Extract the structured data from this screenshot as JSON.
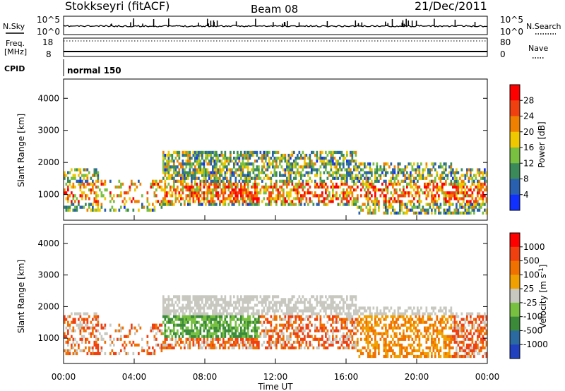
{
  "header": {
    "station": "Stokkseyri (fitACF)",
    "beam": "Beam 08",
    "date": "21/Dec/2011"
  },
  "noise_panel": {
    "left_label": "N.Sky",
    "left_ticks": [
      "10^5",
      "10^0"
    ],
    "right_ticks": [
      "10^5",
      "10^0"
    ],
    "right_label": "N.Search"
  },
  "freq_panel": {
    "left_label_1": "Freq.",
    "left_label_2": "[MHz]",
    "left_ticks": [
      "18",
      "8"
    ],
    "right_ticks": [
      "80",
      "0"
    ],
    "right_label": "Nave"
  },
  "cpid_panel": {
    "label": "CPID",
    "mode": "normal 150"
  },
  "colors": {
    "power_scale": [
      "#1030ff",
      "#2a60b0",
      "#3a8a5a",
      "#7ac040",
      "#f0c800",
      "#f08000",
      "#f04010",
      "#ff0000"
    ],
    "velocity_scale": [
      "#2040c0",
      "#2a6aa0",
      "#3a8a3a",
      "#78c040",
      "#c8c8c0",
      "#f0a000",
      "#f07000",
      "#f04010",
      "#ff0000"
    ]
  },
  "chart_data": [
    {
      "type": "heatmap",
      "quantity": "Power",
      "unit": "dB",
      "colorbar_label": "Power [dB]",
      "colorbar_ticks": [
        "28",
        "24",
        "20",
        "16",
        "12",
        "8",
        "4"
      ],
      "ylabel": "Slant Range [km]",
      "yticks": [
        "4000",
        "3000",
        "2000",
        "1000"
      ],
      "ylim": [
        200,
        4600
      ]
    },
    {
      "type": "heatmap",
      "quantity": "Velocity",
      "unit": "m s^-1",
      "colorbar_label": "Velocity [m s",
      "colorbar_label_sup": "-1",
      "colorbar_label_end": "]",
      "colorbar_ticks": [
        "1000",
        "500",
        "100",
        "25",
        "-25",
        "-100",
        "-500",
        "-1000"
      ],
      "ylabel": "Slant Range [km]",
      "yticks": [
        "4000",
        "3000",
        "2000",
        "1000"
      ],
      "ylim": [
        200,
        4600
      ],
      "xticks": [
        "00:00",
        "04:00",
        "08:00",
        "12:00",
        "16:00",
        "20:00",
        "00:00"
      ],
      "xlabel": "Time UT"
    }
  ]
}
